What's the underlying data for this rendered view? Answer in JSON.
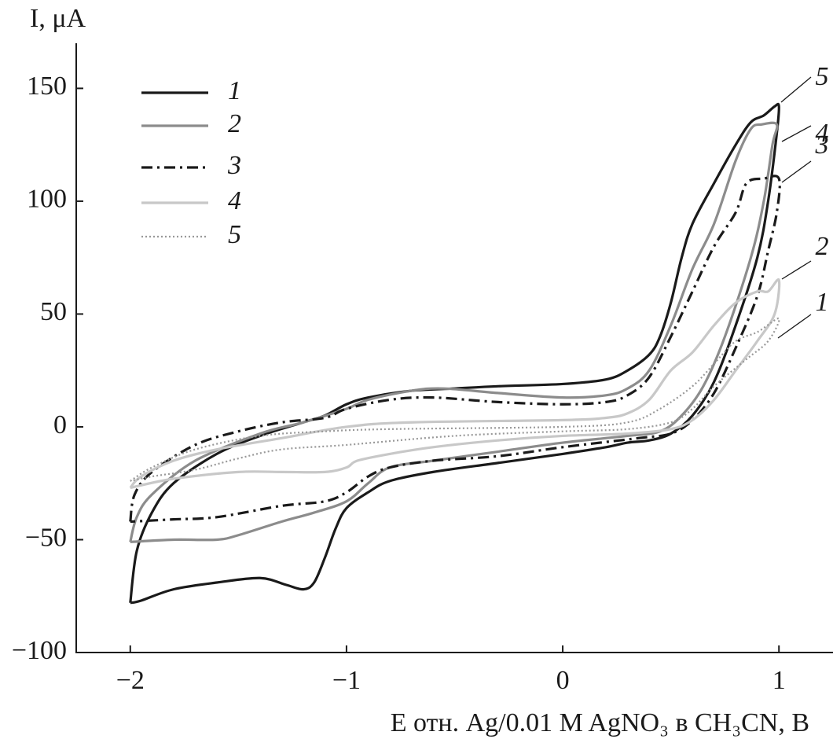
{
  "chart_data": {
    "type": "line",
    "x_label": "E отн. Ag/0.01 M AgNO₃ в CH₃CN, В",
    "y_label": "I, μA",
    "xlim": [
      -2.25,
      1.25
    ],
    "ylim": [
      -100,
      170
    ],
    "xticks": [
      {
        "value": -2,
        "label": "−2"
      },
      {
        "value": -1,
        "label": "−1"
      },
      0,
      1
    ],
    "yticks": [
      {
        "value": -100,
        "label": "−100"
      },
      {
        "value": -50,
        "label": "−50"
      },
      0,
      50,
      100,
      150
    ],
    "annotations": [
      "5",
      "4",
      "3",
      "2",
      "1"
    ],
    "series": [
      {
        "name": "1",
        "color": "#1a1a1a",
        "dash": "solid",
        "x": [
          -2,
          -1.97,
          -1.9,
          -1.8,
          -1.6,
          -1.4,
          -1.2,
          -1.1,
          -1.0,
          -0.9,
          -0.7,
          -0.5,
          -0.3,
          0,
          0.2,
          0.3,
          0.4,
          0.45,
          0.5,
          0.55,
          0.6,
          0.7,
          0.8,
          0.87,
          0.93,
          0.98,
          1.0,
          0.99,
          0.95,
          0.9,
          0.8,
          0.7,
          0.6,
          0.5,
          0.4,
          0.3,
          0.2,
          0,
          -0.3,
          -0.6,
          -0.8,
          -0.9,
          -1.0,
          -1.05,
          -1.1,
          -1.15,
          -1.2,
          -1.28,
          -1.4,
          -1.6,
          -1.8,
          -1.95,
          -2
        ],
        "values": [
          -78,
          -55,
          -38,
          -25,
          -12,
          -4,
          2,
          5,
          10,
          13,
          16,
          17,
          18,
          19,
          21,
          25,
          32,
          40,
          55,
          75,
          90,
          108,
          125,
          135,
          138,
          142,
          142,
          130,
          100,
          75,
          45,
          20,
          5,
          -3,
          -6,
          -7,
          -9,
          -12,
          -16,
          -20,
          -24,
          -29,
          -36,
          -45,
          -58,
          -69,
          -72,
          -70,
          -67,
          -69,
          -72,
          -77,
          -78
        ]
      },
      {
        "name": "2",
        "color": "#8c8c8c",
        "dash": "solid",
        "x": [
          -2,
          -1.97,
          -1.9,
          -1.7,
          -1.4,
          -1.2,
          -1.0,
          -0.9,
          -0.7,
          -0.55,
          -0.3,
          0,
          0.2,
          0.3,
          0.4,
          0.5,
          0.6,
          0.7,
          0.8,
          0.87,
          0.92,
          0.99,
          0.97,
          0.93,
          0.87,
          0.75,
          0.65,
          0.55,
          0.45,
          0.3,
          0,
          -0.3,
          -0.6,
          -0.8,
          -0.9,
          -1.0,
          -1.15,
          -1.3,
          -1.5,
          -1.6,
          -1.8,
          -2
        ],
        "values": [
          -51,
          -40,
          -30,
          -15,
          -3,
          2,
          8,
          12,
          16,
          17,
          15,
          13,
          14,
          17,
          25,
          45,
          70,
          90,
          118,
          132,
          134,
          134,
          125,
          100,
          75,
          40,
          18,
          5,
          -2,
          -4,
          -7,
          -11,
          -15,
          -18,
          -25,
          -33,
          -38,
          -42,
          -48,
          -50,
          -50,
          -51
        ]
      },
      {
        "name": "3",
        "color": "#1a1a1a",
        "dash": "dashdot",
        "x": [
          -2,
          -1.98,
          -1.9,
          -1.7,
          -1.5,
          -1.3,
          -1.1,
          -1.0,
          -0.8,
          -0.6,
          -0.3,
          0,
          0.2,
          0.3,
          0.4,
          0.5,
          0.6,
          0.7,
          0.8,
          0.85,
          0.93,
          1.0,
          0.99,
          0.95,
          0.9,
          0.8,
          0.7,
          0.6,
          0.5,
          0.35,
          0,
          -0.3,
          -0.6,
          -0.8,
          -0.9,
          -1.0,
          -1.1,
          -1.3,
          -1.6,
          -1.8,
          -2
        ],
        "values": [
          -42,
          -30,
          -20,
          -8,
          -2,
          2,
          4,
          8,
          12,
          13,
          11,
          10,
          11,
          14,
          22,
          40,
          60,
          80,
          95,
          108,
          110,
          110,
          95,
          78,
          58,
          35,
          15,
          3,
          -3,
          -5,
          -9,
          -13,
          -15,
          -18,
          -22,
          -29,
          -33,
          -35,
          -40,
          -41,
          -42
        ]
      },
      {
        "name": "4",
        "color": "#c8c8c8",
        "dash": "solid",
        "x": [
          -2,
          -1.95,
          -1.8,
          -1.6,
          -1.3,
          -1.0,
          -0.7,
          0,
          0.2,
          0.3,
          0.4,
          0.5,
          0.6,
          0.7,
          0.8,
          0.9,
          0.95,
          1.0,
          0.98,
          0.9,
          0.8,
          0.7,
          0.6,
          0.5,
          0.3,
          0,
          -0.3,
          -0.6,
          -0.8,
          -0.95,
          -1.0,
          -1.1,
          -1.3,
          -1.5,
          -1.8,
          -2
        ],
        "values": [
          -27,
          -22,
          -15,
          -10,
          -5,
          0,
          2,
          3,
          4,
          6,
          12,
          25,
          33,
          45,
          55,
          60,
          60,
          65,
          50,
          38,
          25,
          12,
          3,
          -1,
          -3,
          -4,
          -6,
          -9,
          -12,
          -15,
          -18,
          -20,
          -20,
          -20,
          -23,
          -27
        ]
      },
      {
        "name": "5",
        "color": "#999999",
        "dash": "dotted",
        "x": [
          -2,
          -1.9,
          -1.7,
          -1.4,
          -1.1,
          -0.8,
          0,
          0.3,
          0.45,
          0.6,
          0.7,
          0.8,
          0.9,
          1.0,
          0.95,
          0.85,
          0.7,
          0.6,
          0.5,
          0.3,
          0,
          -0.5,
          -1.0,
          -1.3,
          -1.5,
          -1.7,
          -1.9,
          -2
        ],
        "values": [
          -24,
          -18,
          -10,
          -4,
          -2,
          -1,
          0,
          2,
          8,
          18,
          28,
          38,
          42,
          48,
          38,
          30,
          18,
          8,
          2,
          -1,
          -2,
          -4,
          -8,
          -10,
          -14,
          -19,
          -22,
          -24
        ]
      }
    ]
  }
}
